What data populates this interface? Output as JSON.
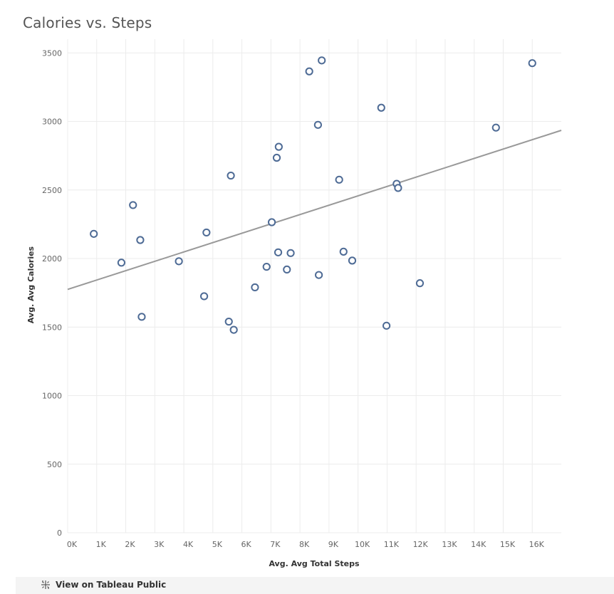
{
  "chart_title": "Calories vs. Steps",
  "footer": {
    "link_label": "View on Tableau Public",
    "icon": "tableau-logo-icon"
  },
  "colors": {
    "marker": "#4e6b95",
    "trend": "#999999",
    "grid": "#ececec"
  },
  "chart_data": {
    "type": "scatter",
    "title": "Calories vs. Steps",
    "xlabel": "Avg. Avg Total Steps",
    "ylabel": "Avg. Avg Calories",
    "xlim": [
      0,
      17000
    ],
    "ylim": [
      0,
      3600
    ],
    "x_ticks": [
      0,
      1000,
      2000,
      3000,
      4000,
      5000,
      6000,
      7000,
      8000,
      9000,
      10000,
      11000,
      12000,
      13000,
      14000,
      15000,
      16000
    ],
    "x_tick_labels": [
      "0K",
      "1K",
      "2K",
      "3K",
      "4K",
      "5K",
      "6K",
      "7K",
      "8K",
      "9K",
      "10K",
      "11K",
      "12K",
      "13K",
      "14K",
      "15K",
      "16K"
    ],
    "y_ticks": [
      0,
      500,
      1000,
      1500,
      2000,
      2500,
      3000,
      3500
    ],
    "y_tick_labels": [
      "0",
      "500",
      "1000",
      "1500",
      "2000",
      "2500",
      "3000",
      "3500"
    ],
    "grid": true,
    "trend_line": {
      "x": [
        0,
        17000
      ],
      "y": [
        1775,
        2935
      ]
    },
    "points": [
      {
        "x": 900,
        "y": 2180
      },
      {
        "x": 1850,
        "y": 1970
      },
      {
        "x": 2250,
        "y": 2390
      },
      {
        "x": 2500,
        "y": 2135
      },
      {
        "x": 2550,
        "y": 1575
      },
      {
        "x": 3830,
        "y": 1980
      },
      {
        "x": 4700,
        "y": 1725
      },
      {
        "x": 4780,
        "y": 2190
      },
      {
        "x": 5550,
        "y": 1540
      },
      {
        "x": 5620,
        "y": 2605
      },
      {
        "x": 5720,
        "y": 1480
      },
      {
        "x": 6450,
        "y": 1790
      },
      {
        "x": 6850,
        "y": 1940
      },
      {
        "x": 7030,
        "y": 2265
      },
      {
        "x": 7200,
        "y": 2735
      },
      {
        "x": 7250,
        "y": 2045
      },
      {
        "x": 7270,
        "y": 2815
      },
      {
        "x": 7550,
        "y": 1920
      },
      {
        "x": 7680,
        "y": 2040
      },
      {
        "x": 8320,
        "y": 3365
      },
      {
        "x": 8620,
        "y": 2975
      },
      {
        "x": 8650,
        "y": 1880
      },
      {
        "x": 8750,
        "y": 3445
      },
      {
        "x": 9350,
        "y": 2575
      },
      {
        "x": 9500,
        "y": 2050
      },
      {
        "x": 9800,
        "y": 1985
      },
      {
        "x": 10800,
        "y": 3100
      },
      {
        "x": 10980,
        "y": 1510
      },
      {
        "x": 11330,
        "y": 2545
      },
      {
        "x": 11380,
        "y": 2515
      },
      {
        "x": 12130,
        "y": 1820
      },
      {
        "x": 14750,
        "y": 2955
      },
      {
        "x": 16000,
        "y": 3425
      }
    ]
  }
}
